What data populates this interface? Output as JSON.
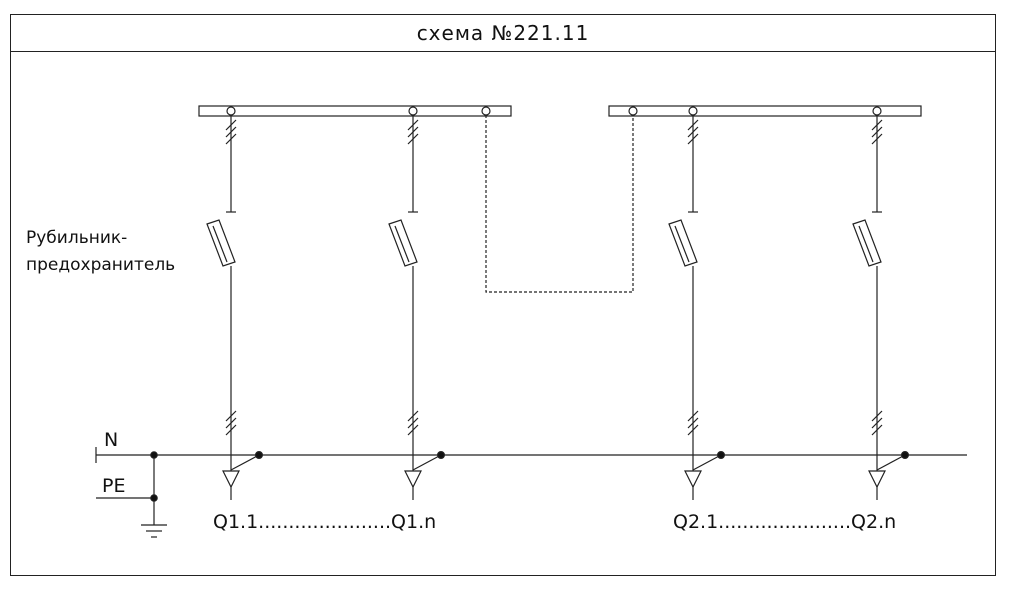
{
  "title": "схема №221.11",
  "switch_label_line1": "Рубильник-",
  "switch_label_line2": "предохранитель",
  "bus_n": "N",
  "bus_pe": "PE",
  "group1_label": "Q1.1......................Q1.n",
  "group2_label": "Q2.1......................Q2.n",
  "line_color": "#222222"
}
